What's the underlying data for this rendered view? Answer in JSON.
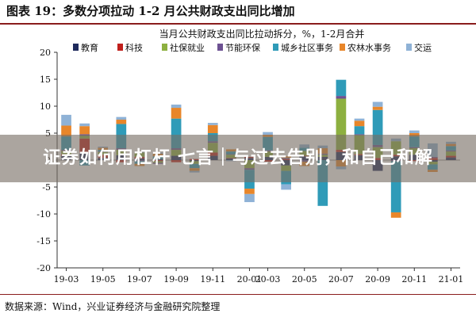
{
  "figure_title": "图表 19：多数分项拉动 1-2 月公共财政支出同比增加",
  "source_note": "数据来源：Wind，兴业证券经济与金融研究院整理",
  "overlay_text": "证券如何用杠杆 七言｜与过去告别，和自己和解",
  "chart_data": {
    "type": "bar",
    "stacked": true,
    "title": "当月公共财政支出同比拉动拆分，%，1-2月合并",
    "ylim": [
      -20,
      20
    ],
    "yticks": [
      -20,
      -15,
      -10,
      -5,
      0,
      5,
      10,
      15,
      20
    ],
    "grid": false,
    "legend_position": "top",
    "categories": [
      "19-03",
      "19-04",
      "19-05",
      "19-06",
      "19-07",
      "19-08",
      "19-09",
      "19-10",
      "19-11",
      "19-12",
      "20-01",
      "20-03",
      "20-04",
      "20-05",
      "20-06",
      "20-07",
      "20-08",
      "20-09",
      "20-10",
      "20-11",
      "20-12",
      "21-01"
    ],
    "xtick_labels": [
      "19-03",
      "19-05",
      "19-07",
      "19-09",
      "19-11",
      "20-01",
      "20-03",
      "20-05",
      "20-07",
      "20-09",
      "20-11",
      "21-01"
    ],
    "series": [
      {
        "name": "教育",
        "color": "#1f2a5c",
        "values": [
          0.8,
          1.3,
          0.4,
          0.9,
          0.3,
          0.2,
          0.8,
          -0.2,
          0.8,
          0.3,
          0.4,
          0.6,
          -1.0,
          0.7,
          0.6,
          1.5,
          0.9,
          -2.0,
          0.7,
          1.0,
          -0.3,
          0.5
        ]
      },
      {
        "name": "科技",
        "color": "#c0201c",
        "values": [
          0.3,
          2.7,
          0.6,
          -0.4,
          0.3,
          -0.2,
          -0.4,
          0.2,
          0.6,
          0.1,
          0.2,
          -0.3,
          0.2,
          0.1,
          0.0,
          0.4,
          0.2,
          0.4,
          0.3,
          -0.2,
          0.4,
          0.3
        ]
      },
      {
        "name": "社保就业",
        "color": "#8db040",
        "values": [
          0.6,
          0.5,
          0.5,
          1.0,
          0.8,
          -0.3,
          1.1,
          -0.5,
          1.8,
          0.6,
          -1.5,
          1.0,
          -1.0,
          0.9,
          0.4,
          9.5,
          3.5,
          2.0,
          2.5,
          1.2,
          -0.5,
          0.8
        ]
      },
      {
        "name": "节能环保",
        "color": "#6d5192",
        "values": [
          0.2,
          0.3,
          0.1,
          0.3,
          -0.2,
          -0.2,
          0.3,
          0.0,
          0.3,
          0.1,
          -0.3,
          0.2,
          0.2,
          -0.3,
          0.2,
          0.5,
          0.2,
          0.4,
          -0.2,
          0.2,
          0.2,
          0.2
        ]
      },
      {
        "name": "城乡社区事务",
        "color": "#2f9bb8",
        "values": [
          2.5,
          -1.0,
          0.3,
          4.5,
          -0.5,
          0.5,
          5.5,
          -0.8,
          1.5,
          0.5,
          -3.5,
          2.5,
          -2.5,
          0.6,
          -8.5,
          3.0,
          1.5,
          6.5,
          -9.5,
          2.0,
          -1.0,
          0.8
        ]
      },
      {
        "name": "农林水事务",
        "color": "#e8862a",
        "values": [
          2.0,
          1.5,
          0.4,
          0.8,
          -0.4,
          0.5,
          2.0,
          -0.5,
          1.5,
          0.4,
          -1.0,
          0.4,
          0.3,
          -0.8,
          1.0,
          -1.2,
          1.0,
          0.6,
          -1.0,
          0.6,
          -0.4,
          0.4
        ]
      },
      {
        "name": "交运",
        "color": "#8fb2d6",
        "values": [
          2.0,
          0.5,
          0.2,
          0.5,
          0.1,
          0.2,
          0.6,
          -0.3,
          0.4,
          -0.2,
          -1.5,
          0.5,
          -1.0,
          0.6,
          0.5,
          -0.5,
          0.4,
          0.9,
          0.5,
          0.5,
          2.5,
          0.4
        ]
      }
    ]
  }
}
